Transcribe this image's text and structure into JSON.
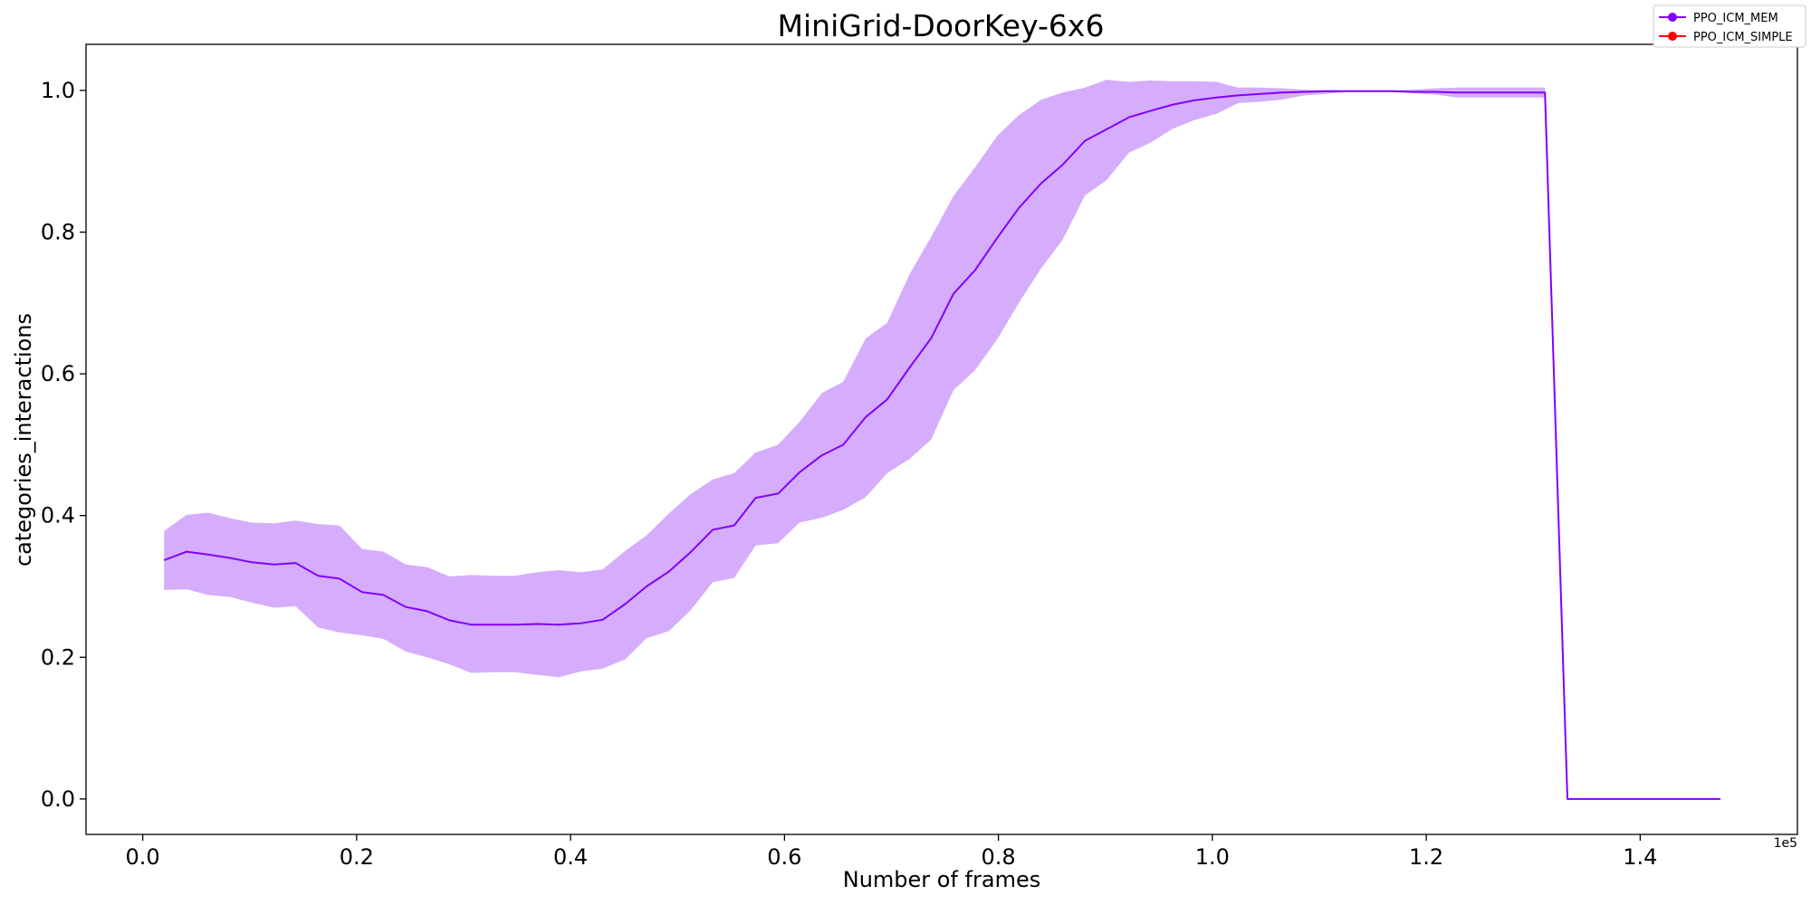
{
  "chart_data": {
    "type": "line",
    "title": "MiniGrid-DoorKey-6x6",
    "xlabel": "Number of frames",
    "ylabel": "categories_interactions",
    "x_offset_label": "1e5",
    "xlim": [
      -0.053,
      1.547
    ],
    "ylim": [
      -0.05,
      1.065
    ],
    "x_ticks": [
      0.0,
      0.2,
      0.4,
      0.6,
      0.8,
      1.0,
      1.2,
      1.4
    ],
    "x_tick_labels": [
      "0.0",
      "0.2",
      "0.4",
      "0.6",
      "0.8",
      "1.0",
      "1.2",
      "1.4"
    ],
    "y_ticks": [
      0.0,
      0.2,
      0.4,
      0.6,
      0.8,
      1.0
    ],
    "y_tick_labels": [
      "0.0",
      "0.2",
      "0.4",
      "0.6",
      "0.8",
      "1.0"
    ],
    "legend_position": "top-right",
    "series": [
      {
        "name": "PPO_ICM_MEM",
        "color": "#8000ff",
        "fill_color": "#d5adfc",
        "x": [
          0.02,
          0.041,
          0.061,
          0.082,
          0.102,
          0.123,
          0.143,
          0.164,
          0.184,
          0.205,
          0.225,
          0.246,
          0.266,
          0.287,
          0.307,
          0.328,
          0.348,
          0.369,
          0.389,
          0.41,
          0.43,
          0.451,
          0.471,
          0.492,
          0.512,
          0.533,
          0.553,
          0.573,
          0.594,
          0.614,
          0.635,
          0.655,
          0.676,
          0.696,
          0.717,
          0.737,
          0.758,
          0.778,
          0.799,
          0.819,
          0.84,
          0.86,
          0.881,
          0.901,
          0.922,
          0.942,
          0.963,
          0.983,
          1.004,
          1.024,
          1.045,
          1.065,
          1.086,
          1.106,
          1.127,
          1.147,
          1.168,
          1.188,
          1.209,
          1.229,
          1.25,
          1.27,
          1.291,
          1.311,
          1.332,
          1.475
        ],
        "y": [
          0.337,
          0.349,
          0.345,
          0.34,
          0.334,
          0.331,
          0.333,
          0.315,
          0.311,
          0.292,
          0.288,
          0.271,
          0.265,
          0.252,
          0.246,
          0.246,
          0.246,
          0.247,
          0.246,
          0.248,
          0.253,
          0.275,
          0.3,
          0.321,
          0.348,
          0.38,
          0.386,
          0.425,
          0.431,
          0.461,
          0.485,
          0.5,
          0.539,
          0.564,
          0.609,
          0.65,
          0.713,
          0.746,
          0.792,
          0.834,
          0.869,
          0.895,
          0.929,
          0.945,
          0.962,
          0.971,
          0.98,
          0.986,
          0.99,
          0.993,
          0.995,
          0.997,
          0.998,
          0.999,
          0.999,
          0.999,
          0.999,
          0.998,
          0.998,
          0.997,
          0.997,
          0.997,
          0.997,
          0.997,
          0.0,
          0.0
        ],
        "lower": [
          0.295,
          0.296,
          0.288,
          0.285,
          0.277,
          0.27,
          0.272,
          0.242,
          0.235,
          0.231,
          0.226,
          0.208,
          0.2,
          0.19,
          0.178,
          0.179,
          0.179,
          0.175,
          0.172,
          0.18,
          0.184,
          0.197,
          0.227,
          0.237,
          0.266,
          0.306,
          0.312,
          0.358,
          0.361,
          0.39,
          0.397,
          0.408,
          0.426,
          0.46,
          0.48,
          0.507,
          0.577,
          0.605,
          0.649,
          0.7,
          0.749,
          0.789,
          0.852,
          0.873,
          0.912,
          0.926,
          0.946,
          0.958,
          0.967,
          0.982,
          0.984,
          0.987,
          0.993,
          0.995,
          0.998,
          0.998,
          0.998,
          0.996,
          0.994,
          0.99,
          0.99,
          0.99,
          0.99,
          0.99,
          0.0,
          0.0
        ],
        "upper": [
          0.378,
          0.401,
          0.404,
          0.396,
          0.39,
          0.389,
          0.393,
          0.388,
          0.386,
          0.353,
          0.349,
          0.331,
          0.327,
          0.314,
          0.316,
          0.315,
          0.315,
          0.32,
          0.323,
          0.32,
          0.324,
          0.35,
          0.372,
          0.403,
          0.43,
          0.451,
          0.46,
          0.489,
          0.5,
          0.532,
          0.573,
          0.589,
          0.65,
          0.672,
          0.741,
          0.793,
          0.851,
          0.891,
          0.936,
          0.965,
          0.987,
          0.997,
          1.004,
          1.015,
          1.012,
          1.014,
          1.013,
          1.013,
          1.012,
          1.004,
          1.004,
          1.003,
          1.001,
          1.0,
          1.0,
          1.0,
          1.0,
          1.001,
          1.003,
          1.004,
          1.004,
          1.004,
          1.004,
          1.004,
          0.0,
          0.0
        ]
      },
      {
        "name": "PPO_ICM_SIMPLE",
        "color": "#ff0000",
        "x": [],
        "y": []
      }
    ]
  }
}
